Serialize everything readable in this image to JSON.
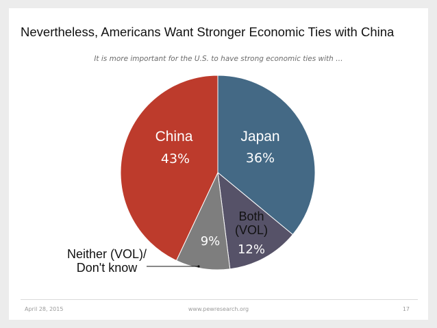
{
  "slide": {
    "title": "Nevertheless, Americans Want Stronger Economic Ties with China",
    "subtitle": "It is more important for the U.S. to have strong economic ties with …",
    "footer": {
      "date": "April 28, 2015",
      "url": "www.pewresearch.org",
      "page": "17"
    }
  },
  "chart_data": {
    "type": "pie",
    "title": "Nevertheless, Americans Want Stronger Economic Ties with China",
    "subtitle": "It is more important for the U.S. to have strong economic ties with …",
    "start_angle_deg": 0,
    "direction": "clockwise",
    "slices": [
      {
        "label": "Japan",
        "label_lines": [
          "Japan"
        ],
        "value": 36,
        "value_label": "36%",
        "color": "#446985"
      },
      {
        "label": "Both (VOL)",
        "label_lines": [
          "Both",
          "(VOL)"
        ],
        "value": 12,
        "value_label": "12%",
        "color": "#565268"
      },
      {
        "label": "Neither (VOL)/ Don't know",
        "label_lines": [
          "Neither (VOL)/",
          "Don't know"
        ],
        "value": 9,
        "value_label": "9%",
        "color": "#7e7e7e"
      },
      {
        "label": "China",
        "label_lines": [
          "China"
        ],
        "value": 43,
        "value_label": "43%",
        "color": "#bd3b2c"
      }
    ]
  }
}
